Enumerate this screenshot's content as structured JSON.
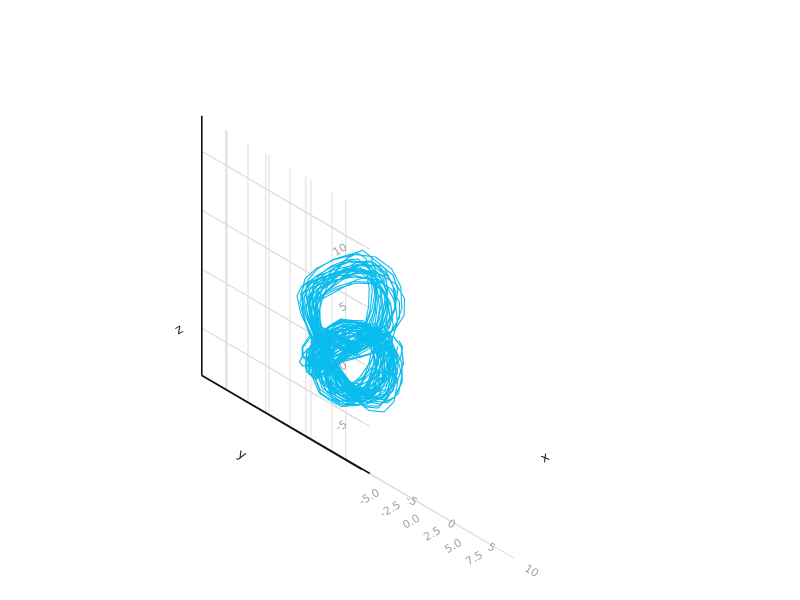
{
  "chart_data": {
    "type": "line3d",
    "title": "",
    "xlabel": "x",
    "ylabel": "y",
    "zlabel": "z",
    "xlim": [
      -8,
      12
    ],
    "ylim": [
      -8,
      12
    ],
    "zlim": [
      -9,
      13
    ],
    "xticks": [
      -5,
      0,
      5,
      10
    ],
    "xtick_labels": [
      "-5",
      "0",
      "5",
      "10"
    ],
    "yticks": [
      -5,
      -2.5,
      0,
      2.5,
      5,
      7.5
    ],
    "ytick_labels": [
      "-5.0",
      "-2.5",
      "0.0",
      "2.5",
      "5.0",
      "7.5"
    ],
    "zticks": [
      -5,
      0,
      5,
      10
    ],
    "ztick_labels": [
      "-5",
      "0",
      "5",
      "10"
    ],
    "grid": true,
    "legend": "none",
    "series": [
      {
        "color": "#0bbcee",
        "description_points": "chaotic attractor trajectory (approximate samples)",
        "x": [
          1.0,
          1.5,
          2.6,
          4.0,
          5.5,
          6.8,
          7.5,
          7.4,
          6.6,
          5.2,
          3.6,
          2.1,
          0.8,
          -0.3,
          -1.1,
          -1.5,
          -1.3,
          -0.6,
          0.6,
          2.1,
          3.8,
          5.3,
          6.5,
          7.0,
          6.6,
          5.5,
          3.9,
          2.2,
          0.6,
          -0.6,
          -1.4,
          -1.6,
          -1.1,
          0.0,
          1.6,
          3.4,
          5.1,
          6.4,
          7.1,
          6.9,
          6.0,
          4.5,
          2.8,
          1.1,
          -0.4
        ],
        "y": [
          -3.0,
          -3.8,
          -4.4,
          -4.5,
          -3.9,
          -2.7,
          -1.1,
          0.6,
          2.1,
          3.2,
          3.8,
          3.7,
          3.0,
          1.9,
          0.5,
          -1.0,
          -2.4,
          -3.4,
          -4.0,
          -4.1,
          -3.6,
          -2.6,
          -1.2,
          0.4,
          1.9,
          3.0,
          3.6,
          3.5,
          2.8,
          1.6,
          0.2,
          -1.3,
          -2.6,
          -3.6,
          -4.2,
          -4.2,
          -3.6,
          -2.5,
          -1.0,
          0.6,
          2.0,
          3.1,
          3.6,
          3.4,
          2.6
        ],
        "z": [
          0.5,
          -1.5,
          -3.2,
          -4.2,
          -4.3,
          -3.4,
          -1.8,
          0.2,
          2.0,
          3.3,
          3.8,
          3.4,
          2.2,
          0.6,
          -1.1,
          -2.5,
          -3.2,
          -3.0,
          -2.0,
          -0.5,
          1.2,
          2.6,
          3.3,
          3.1,
          2.0,
          0.4,
          -1.3,
          -2.6,
          -3.2,
          -2.9,
          -1.8,
          -0.2,
          1.5,
          3.0,
          4.2,
          5.5,
          7.0,
          8.4,
          9.2,
          9.0,
          8.0,
          6.3,
          4.4,
          2.6,
          1.0
        ]
      }
    ]
  }
}
